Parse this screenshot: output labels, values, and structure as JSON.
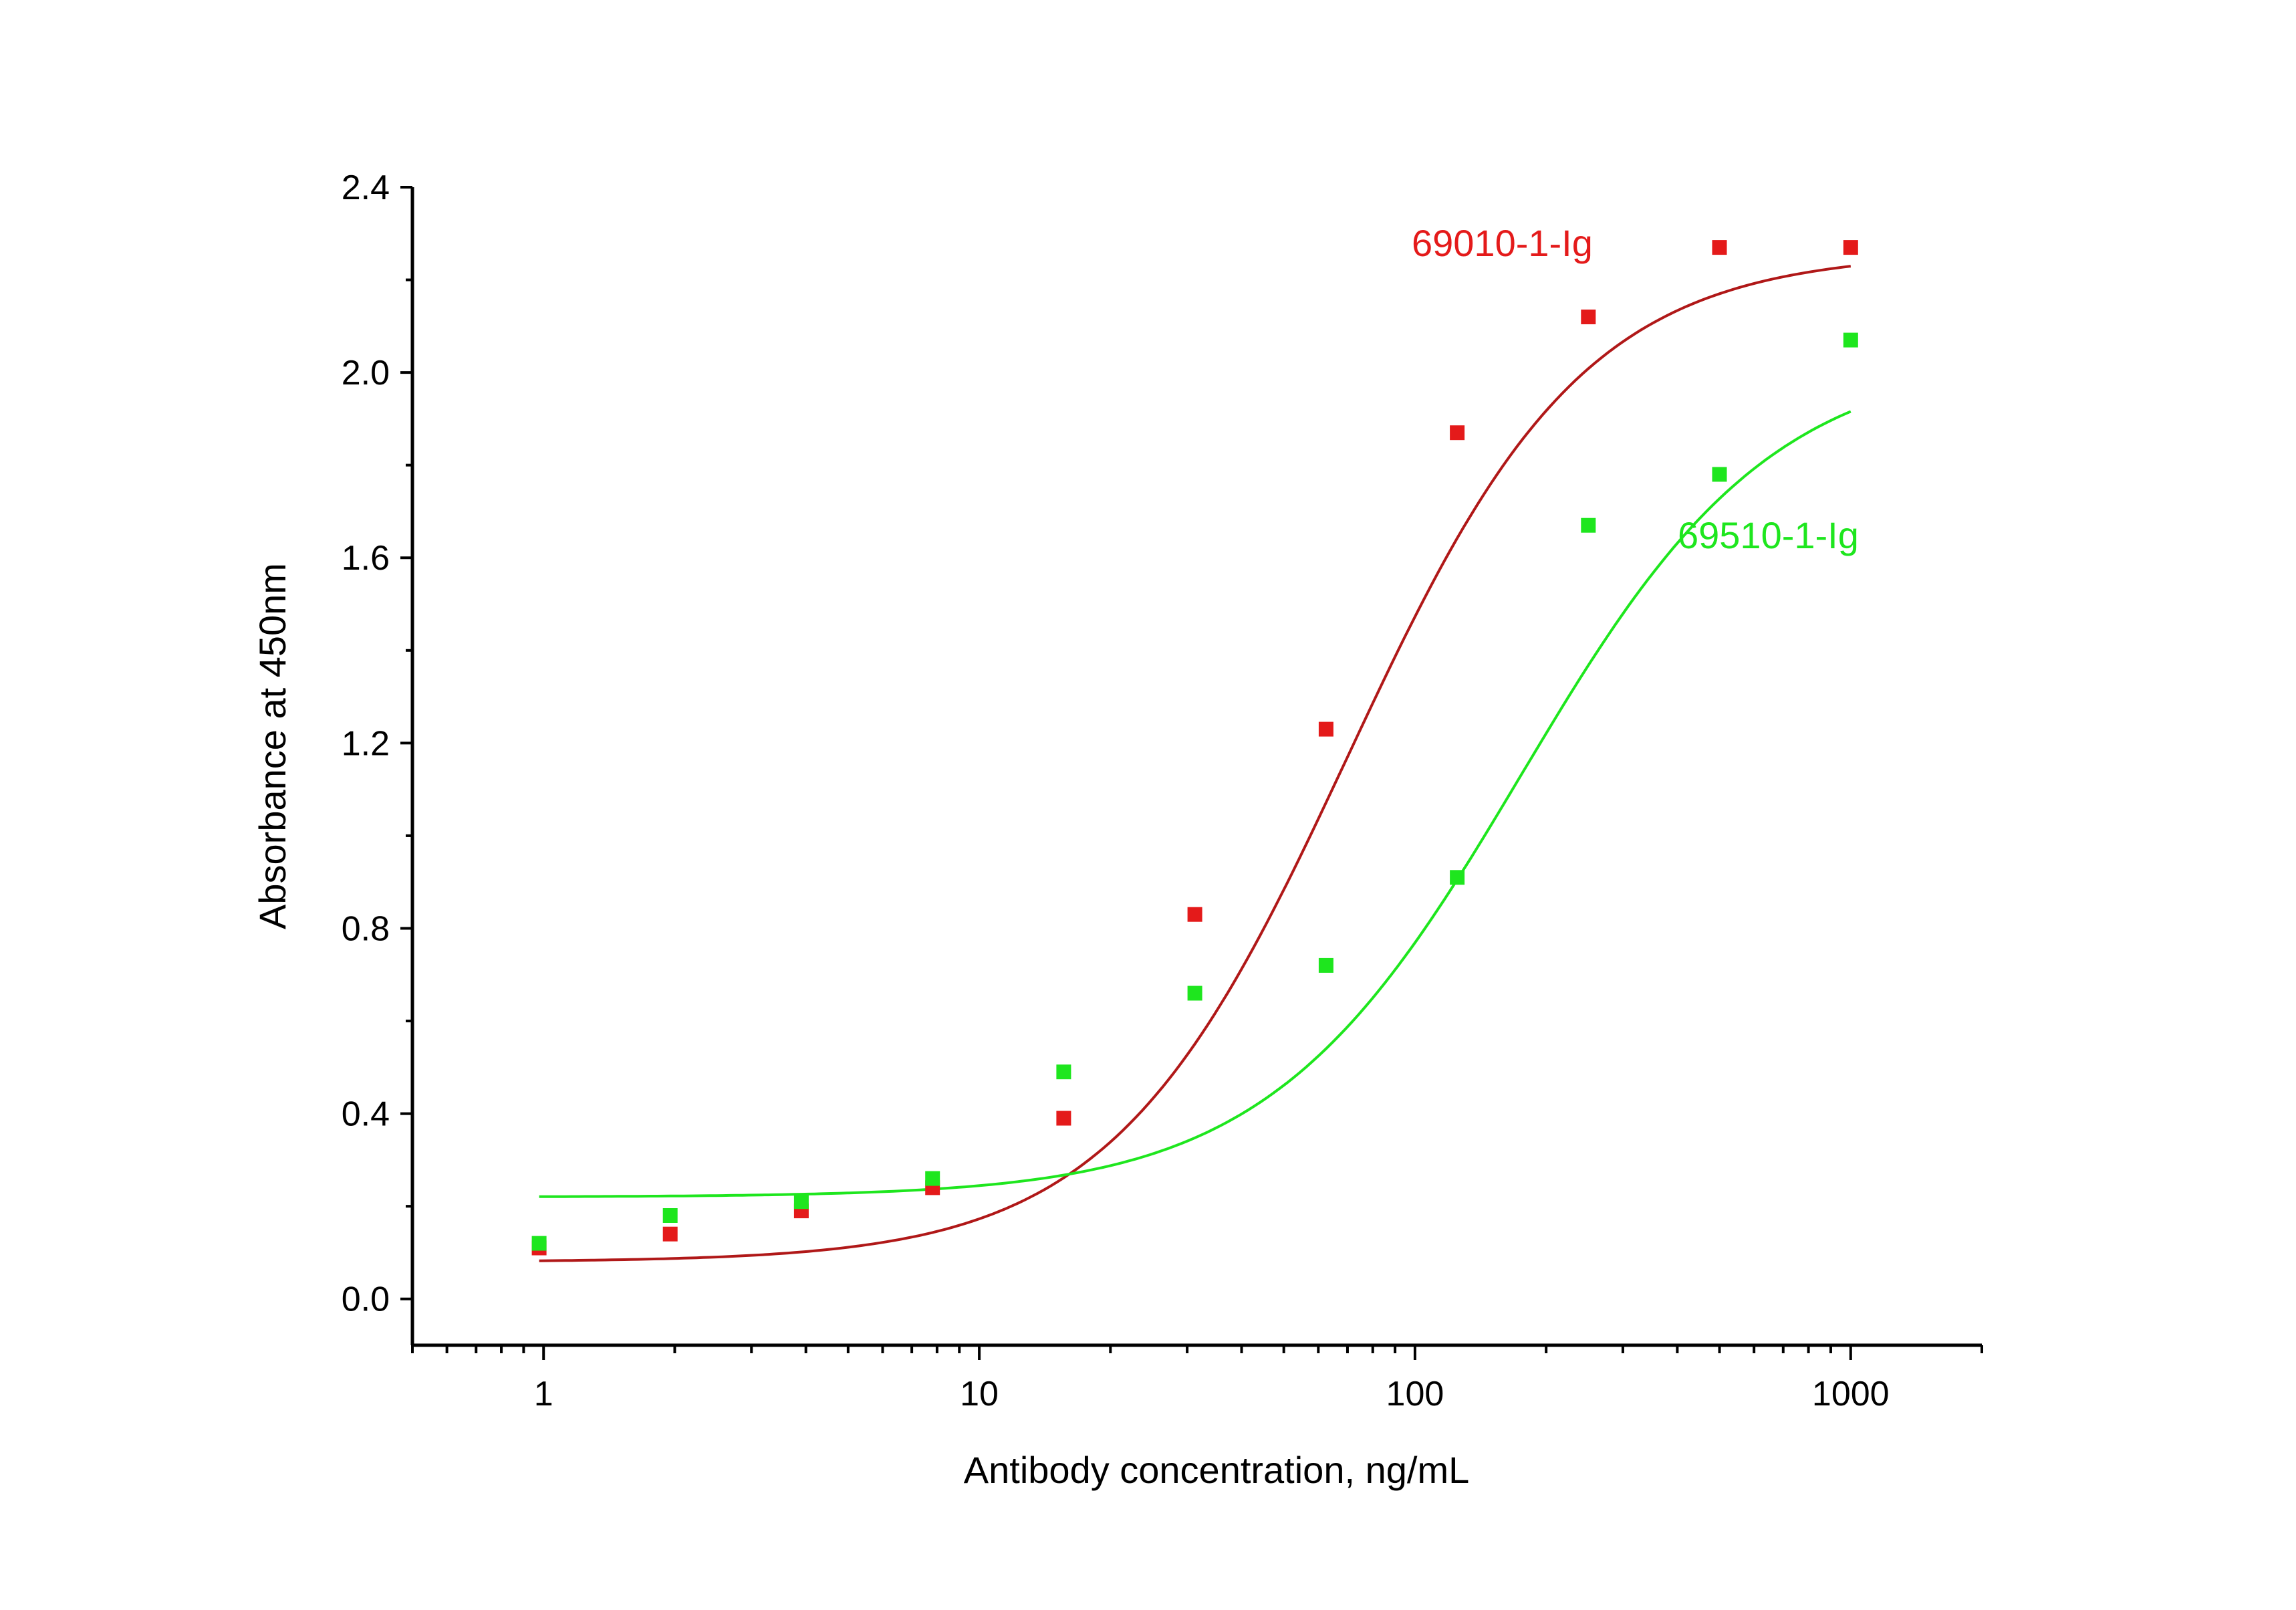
{
  "chart_data": {
    "type": "scatter",
    "title": "",
    "xlabel": "Antibody concentration, ng/mL",
    "ylabel": "Absorbance at 450nm",
    "x_scale": "log",
    "xlim": [
      0.5,
      2000
    ],
    "ylim": [
      -0.1,
      2.4
    ],
    "x_ticks": [
      1,
      10,
      100,
      1000
    ],
    "x_tick_labels": [
      "1",
      "10",
      "100",
      "1000"
    ],
    "y_ticks": [
      0.0,
      0.4,
      0.8,
      1.2,
      1.6,
      2.0,
      2.4
    ],
    "y_tick_labels": [
      "0.0",
      "0.4",
      "0.8",
      "1.2",
      "1.6",
      "2.0",
      "2.4"
    ],
    "grid": false,
    "legend": "none",
    "x": [
      0.977,
      1.953,
      3.906,
      7.813,
      15.625,
      31.25,
      62.5,
      125,
      250,
      500,
      1000
    ],
    "series": [
      {
        "name": "69010-1-Ig",
        "color": "#e41a1a",
        "values": [
          0.11,
          0.14,
          0.19,
          0.24,
          0.39,
          0.83,
          1.23,
          1.87,
          2.12,
          2.27,
          2.27
        ],
        "fit": {
          "model": "4PL",
          "bottom": 0.08,
          "top": 2.26,
          "ec50": 70,
          "hill": 1.6
        }
      },
      {
        "name": "69510-1-Ig",
        "color": "#1ee61e",
        "values": [
          0.12,
          0.18,
          0.21,
          0.26,
          0.49,
          0.66,
          0.72,
          0.91,
          1.67,
          1.78,
          2.07
        ],
        "fit": {
          "model": "4PL",
          "bottom": 0.22,
          "top": 2.04,
          "ec50": 175,
          "hill": 1.5
        }
      }
    ]
  },
  "annotations": [
    {
      "text": "69010-1-Ig",
      "color": "#e41a1a"
    },
    {
      "text": "69510-1-Ig",
      "color": "#1ee61e"
    }
  ]
}
